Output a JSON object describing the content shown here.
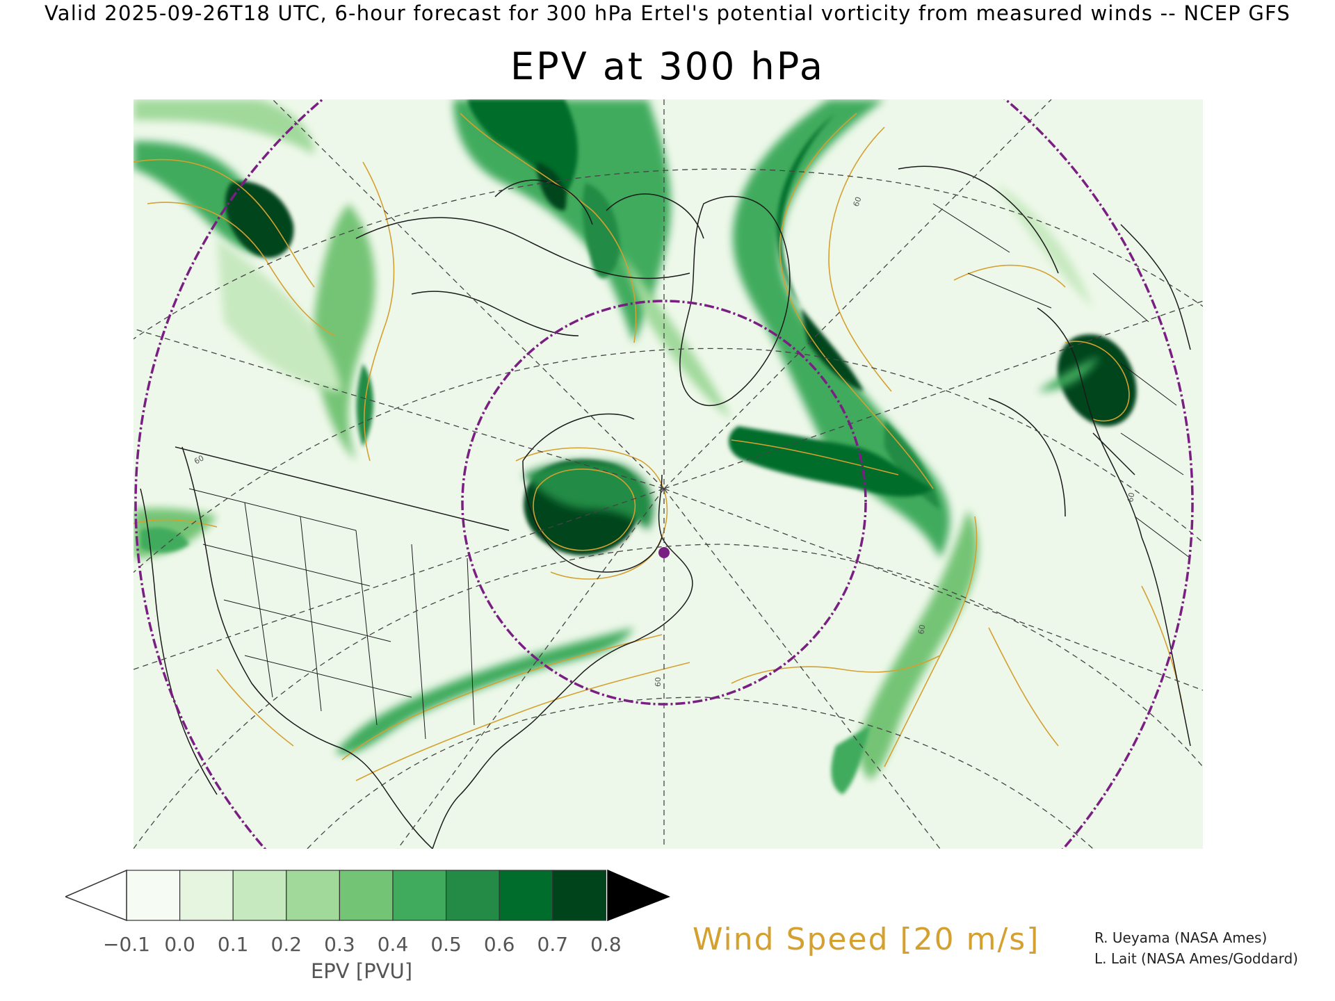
{
  "header": {
    "valid_line": "Valid 2025-09-26T18 UTC, 6-hour forecast for 300 hPa Ertel's potential vorticity from measured winds -- NCEP GFS",
    "title": "EPV at 300 hPa"
  },
  "map": {
    "field": "EPV",
    "level": "300 hPa",
    "contour_labels": [
      "60",
      "60",
      "60",
      "60",
      "60"
    ],
    "colors": {
      "background_green": "#eef8ea",
      "wind_contour": "#d4a030",
      "range_ring": "#7a1f82",
      "coastline": "#1a1a1a",
      "grid": "#444444"
    }
  },
  "legend": {
    "colorbar_ticks": [
      "−0.1",
      "0.0",
      "0.1",
      "0.2",
      "0.3",
      "0.4",
      "0.5",
      "0.6",
      "0.7",
      "0.8"
    ],
    "colorbar_colors": [
      "#ffffff",
      "#f6fcf4",
      "#e5f5e0",
      "#c7e9c0",
      "#a1d99b",
      "#74c476",
      "#41ab5d",
      "#238b45",
      "#006d2c",
      "#00441b",
      "#000000"
    ],
    "colorbar_title": "EPV [PVU]",
    "wind_label": "Wind Speed [20 m/s]"
  },
  "credits": {
    "line1": "R. Ueyama (NASA Ames)",
    "line2": "L. Lait (NASA Ames/Goddard)"
  }
}
